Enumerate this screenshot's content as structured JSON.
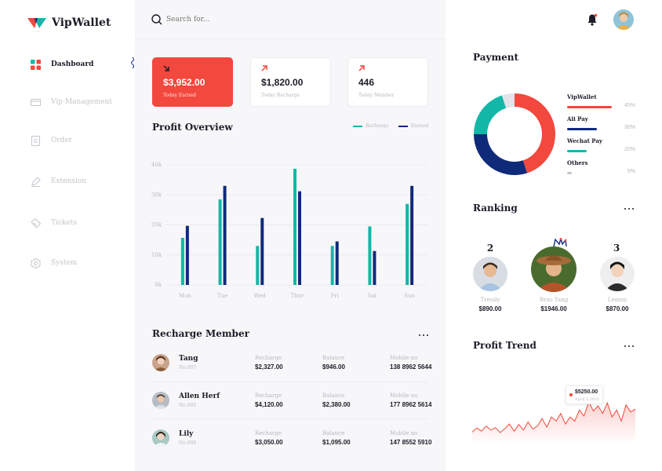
{
  "app": {
    "name": "VipWallet"
  },
  "colors": {
    "accent_red": "#f2483e",
    "teal": "#13b7a8",
    "navy": "#102a7a",
    "gray_slice": "#e3e3ea"
  },
  "sidebar": {
    "items": [
      {
        "label": "Dashboard",
        "icon": "dashboard-icon",
        "active": true
      },
      {
        "label": "Vip Management",
        "icon": "card-icon"
      },
      {
        "label": "Order",
        "icon": "document-icon"
      },
      {
        "label": "Extension",
        "icon": "pen-icon"
      },
      {
        "label": "Tickets",
        "icon": "ticket-icon"
      },
      {
        "label": "System",
        "icon": "settings-icon"
      }
    ]
  },
  "search": {
    "placeholder": "Search for..."
  },
  "stats": [
    {
      "value": "$3,952.00",
      "label": "Today Earned",
      "arrow": "down-right"
    },
    {
      "value": "$1,820.00",
      "label": "Today Recharge",
      "arrow": "up-right"
    },
    {
      "value": "446",
      "label": "Today Member",
      "arrow": "up-right"
    }
  ],
  "profit_overview": {
    "title": "Profit Overview",
    "legend": {
      "recharge": "Recharge",
      "earned": "Earned"
    }
  },
  "chart_data": {
    "type": "bar",
    "categories": [
      "Mon",
      "Tue",
      "Wed",
      "Thur",
      "Fri",
      "Sat",
      "Sun"
    ],
    "series": [
      {
        "name": "Recharge",
        "values": [
          15700,
          28500,
          13000,
          38700,
          13000,
          19500,
          27000
        ]
      },
      {
        "name": "Earned",
        "values": [
          19700,
          33000,
          22300,
          31200,
          14500,
          11300,
          33000
        ]
      }
    ],
    "yticks": [
      "0k",
      "10k",
      "20k",
      "30k",
      "40k"
    ],
    "ylim": [
      0,
      40000
    ],
    "grid": true,
    "legend_position": "top-right"
  },
  "recharge_member": {
    "title": "Recharge Member",
    "col_labels": {
      "recharge": "Recharge",
      "balance": "Balance",
      "mobile": "Mobile no"
    },
    "rows": [
      {
        "name": "Tang",
        "no": "No.007",
        "recharge": "$2,327.00",
        "balance": "$946.00",
        "mobile": "138 8962 5644"
      },
      {
        "name": "Allen Herf",
        "no": "No.005",
        "recharge": "$4,120.00",
        "balance": "$2,380.00",
        "mobile": "177 8962 5614"
      },
      {
        "name": "Lily",
        "no": "No.009",
        "recharge": "$3,050.00",
        "balance": "$1,095.00",
        "mobile": "147 8552 5910"
      }
    ]
  },
  "payment": {
    "title": "Payment",
    "items": [
      {
        "name": "VipWallet",
        "pct": "45%",
        "value": 45
      },
      {
        "name": "Ali Pay",
        "pct": "30%",
        "value": 30
      },
      {
        "name": "Wechat Pay",
        "pct": "20%",
        "value": 20
      },
      {
        "name": "Others",
        "pct": "5%",
        "value": 5
      }
    ]
  },
  "ranking": {
    "title": "Ranking",
    "items": [
      {
        "pos": "2",
        "name": "Treody",
        "amount": "$890.00"
      },
      {
        "pos": "",
        "name": "Brao Yang",
        "amount": "$1946.00"
      },
      {
        "pos": "3",
        "name": "Lemon",
        "amount": "$870.00"
      }
    ]
  },
  "profit_trend": {
    "title": "Profit Trend",
    "tooltip_value": "$5250.00",
    "tooltip_date": "April 5,2021",
    "values": [
      18,
      26,
      20,
      30,
      22,
      27,
      17,
      25,
      34,
      20,
      33,
      22,
      38,
      24,
      30,
      45,
      28,
      48,
      40,
      55,
      34,
      48,
      40,
      62,
      50,
      78,
      60,
      70,
      55,
      76,
      48,
      62,
      40,
      72,
      58,
      64
    ]
  }
}
